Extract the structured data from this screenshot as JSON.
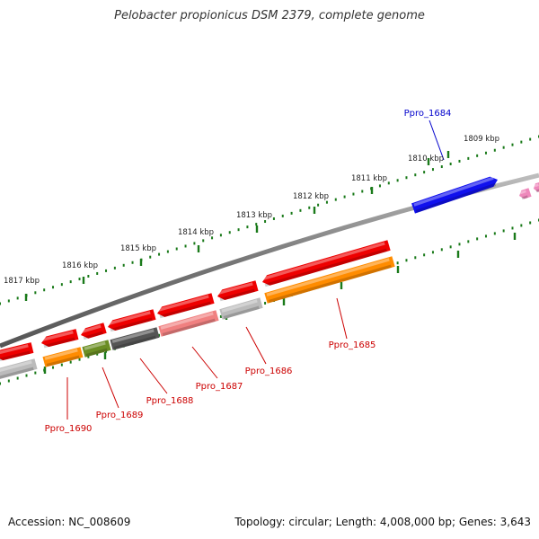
{
  "title": "Pelobacter propionicus DSM 2379, complete genome",
  "accession": "Accession: NC_008609",
  "stats": "Topology: circular; Length: 4,008,000 bp; Genes: 3,643",
  "kbp_labels": [
    {
      "name": "kbp-label-1809",
      "text": "1809 kbp"
    },
    {
      "name": "kbp-label-1810",
      "text": "1810 kbp"
    },
    {
      "name": "kbp-label-1811",
      "text": "1811 kbp"
    },
    {
      "name": "kbp-label-1812",
      "text": "1812 kbp"
    },
    {
      "name": "kbp-label-1813",
      "text": "1813 kbp"
    },
    {
      "name": "kbp-label-1814",
      "text": "1814 kbp"
    },
    {
      "name": "kbp-label-1815",
      "text": "1815 kbp"
    },
    {
      "name": "kbp-label-1816",
      "text": "1816 kbp"
    },
    {
      "name": "kbp-label-1817",
      "text": "1817 kbp"
    }
  ],
  "gene_labels": [
    {
      "name": "gene-label-ppro-1684",
      "text": "Ppro_1684",
      "color": "#0000cc"
    },
    {
      "name": "gene-label-ppro-1685",
      "text": "Ppro_1685",
      "color": "#cc0000"
    },
    {
      "name": "gene-label-ppro-1686",
      "text": "Ppro_1686",
      "color": "#cc0000"
    },
    {
      "name": "gene-label-ppro-1687",
      "text": "Ppro_1687",
      "color": "#cc0000"
    },
    {
      "name": "gene-label-ppro-1688",
      "text": "Ppro_1688",
      "color": "#cc0000"
    },
    {
      "name": "gene-label-ppro-1689",
      "text": "Ppro_1689",
      "color": "#cc0000"
    },
    {
      "name": "gene-label-ppro-1690",
      "text": "Ppro_1690",
      "color": "#cc0000"
    }
  ],
  "colors": {
    "backbone": "#808080",
    "tick": "#1a7a1a",
    "cds_red": "#ee0000",
    "cds_blue": "#1010ee",
    "cds_orange": "#ff8c00",
    "cds_olive": "#6b8e23",
    "cds_dark_gray": "#555555",
    "cds_light_gray": "#bbbbbb",
    "cds_pink": "#f08080",
    "cds_magenta": "#ee88bb"
  }
}
